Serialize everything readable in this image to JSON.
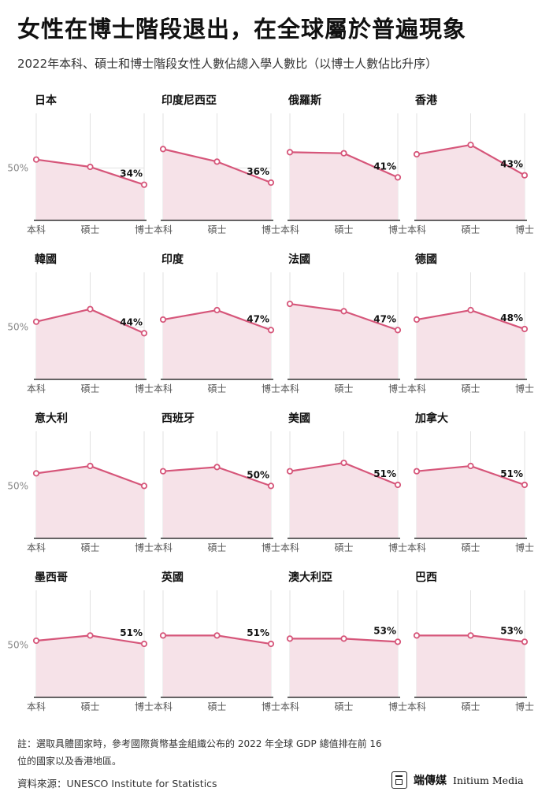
{
  "title": "女性在博士階段退出，在全球屬於普遍現象",
  "subtitle": "2022年本科、碩士和博士階段女性人數佔總入學人數比（以博士人數佔比升序）",
  "note": "註：選取具體國家時，參考國際貨幣基金組織公布的 2022 年全球 GDP 總值排在前 16 位的國家以及香港地區。",
  "source": "資料來源：UNESCO Institute for Statistics",
  "logo": {
    "cn": "端傳媒",
    "en": "Initium Media"
  },
  "colors": {
    "line": "#d6567a",
    "fill": "#f6e2e8",
    "axis": "#333333",
    "grid": "#e2e2e2"
  },
  "chart_data": {
    "type": "area",
    "categories": [
      "本科",
      "碩士",
      "博士"
    ],
    "ytick": "50%",
    "ylim": [
      0,
      100
    ],
    "panels": [
      {
        "name": "日本",
        "values": [
          58,
          51,
          34
        ],
        "label": "34%"
      },
      {
        "name": "印度尼西亞",
        "values": [
          68,
          56,
          36
        ],
        "label": "36%"
      },
      {
        "name": "俄羅斯",
        "values": [
          65,
          64,
          41
        ],
        "label": "41%"
      },
      {
        "name": "香港",
        "values": [
          63,
          72,
          43
        ],
        "label": "43%"
      },
      {
        "name": "韓國",
        "values": [
          55,
          67,
          44
        ],
        "label": "44%"
      },
      {
        "name": "印度",
        "values": [
          57,
          66,
          47
        ],
        "label": "47%"
      },
      {
        "name": "法國",
        "values": [
          72,
          65,
          47
        ],
        "label": "47%"
      },
      {
        "name": "德國",
        "values": [
          57,
          66,
          48
        ],
        "label": "48%"
      },
      {
        "name": "意大利",
        "values": [
          62,
          69,
          50
        ],
        "label": ""
      },
      {
        "name": "西班牙",
        "values": [
          64,
          68,
          50
        ],
        "label": "50%"
      },
      {
        "name": "美國",
        "values": [
          64,
          72,
          51
        ],
        "label": "51%"
      },
      {
        "name": "加拿大",
        "values": [
          64,
          69,
          51
        ],
        "label": "51%"
      },
      {
        "name": "墨西哥",
        "values": [
          54,
          59,
          51
        ],
        "label": "51%"
      },
      {
        "name": "英國",
        "values": [
          59,
          59,
          51
        ],
        "label": "51%"
      },
      {
        "name": "澳大利亞",
        "values": [
          56,
          56,
          53
        ],
        "label": "53%"
      },
      {
        "name": "巴西",
        "values": [
          59,
          59,
          53
        ],
        "label": "53%"
      }
    ]
  }
}
